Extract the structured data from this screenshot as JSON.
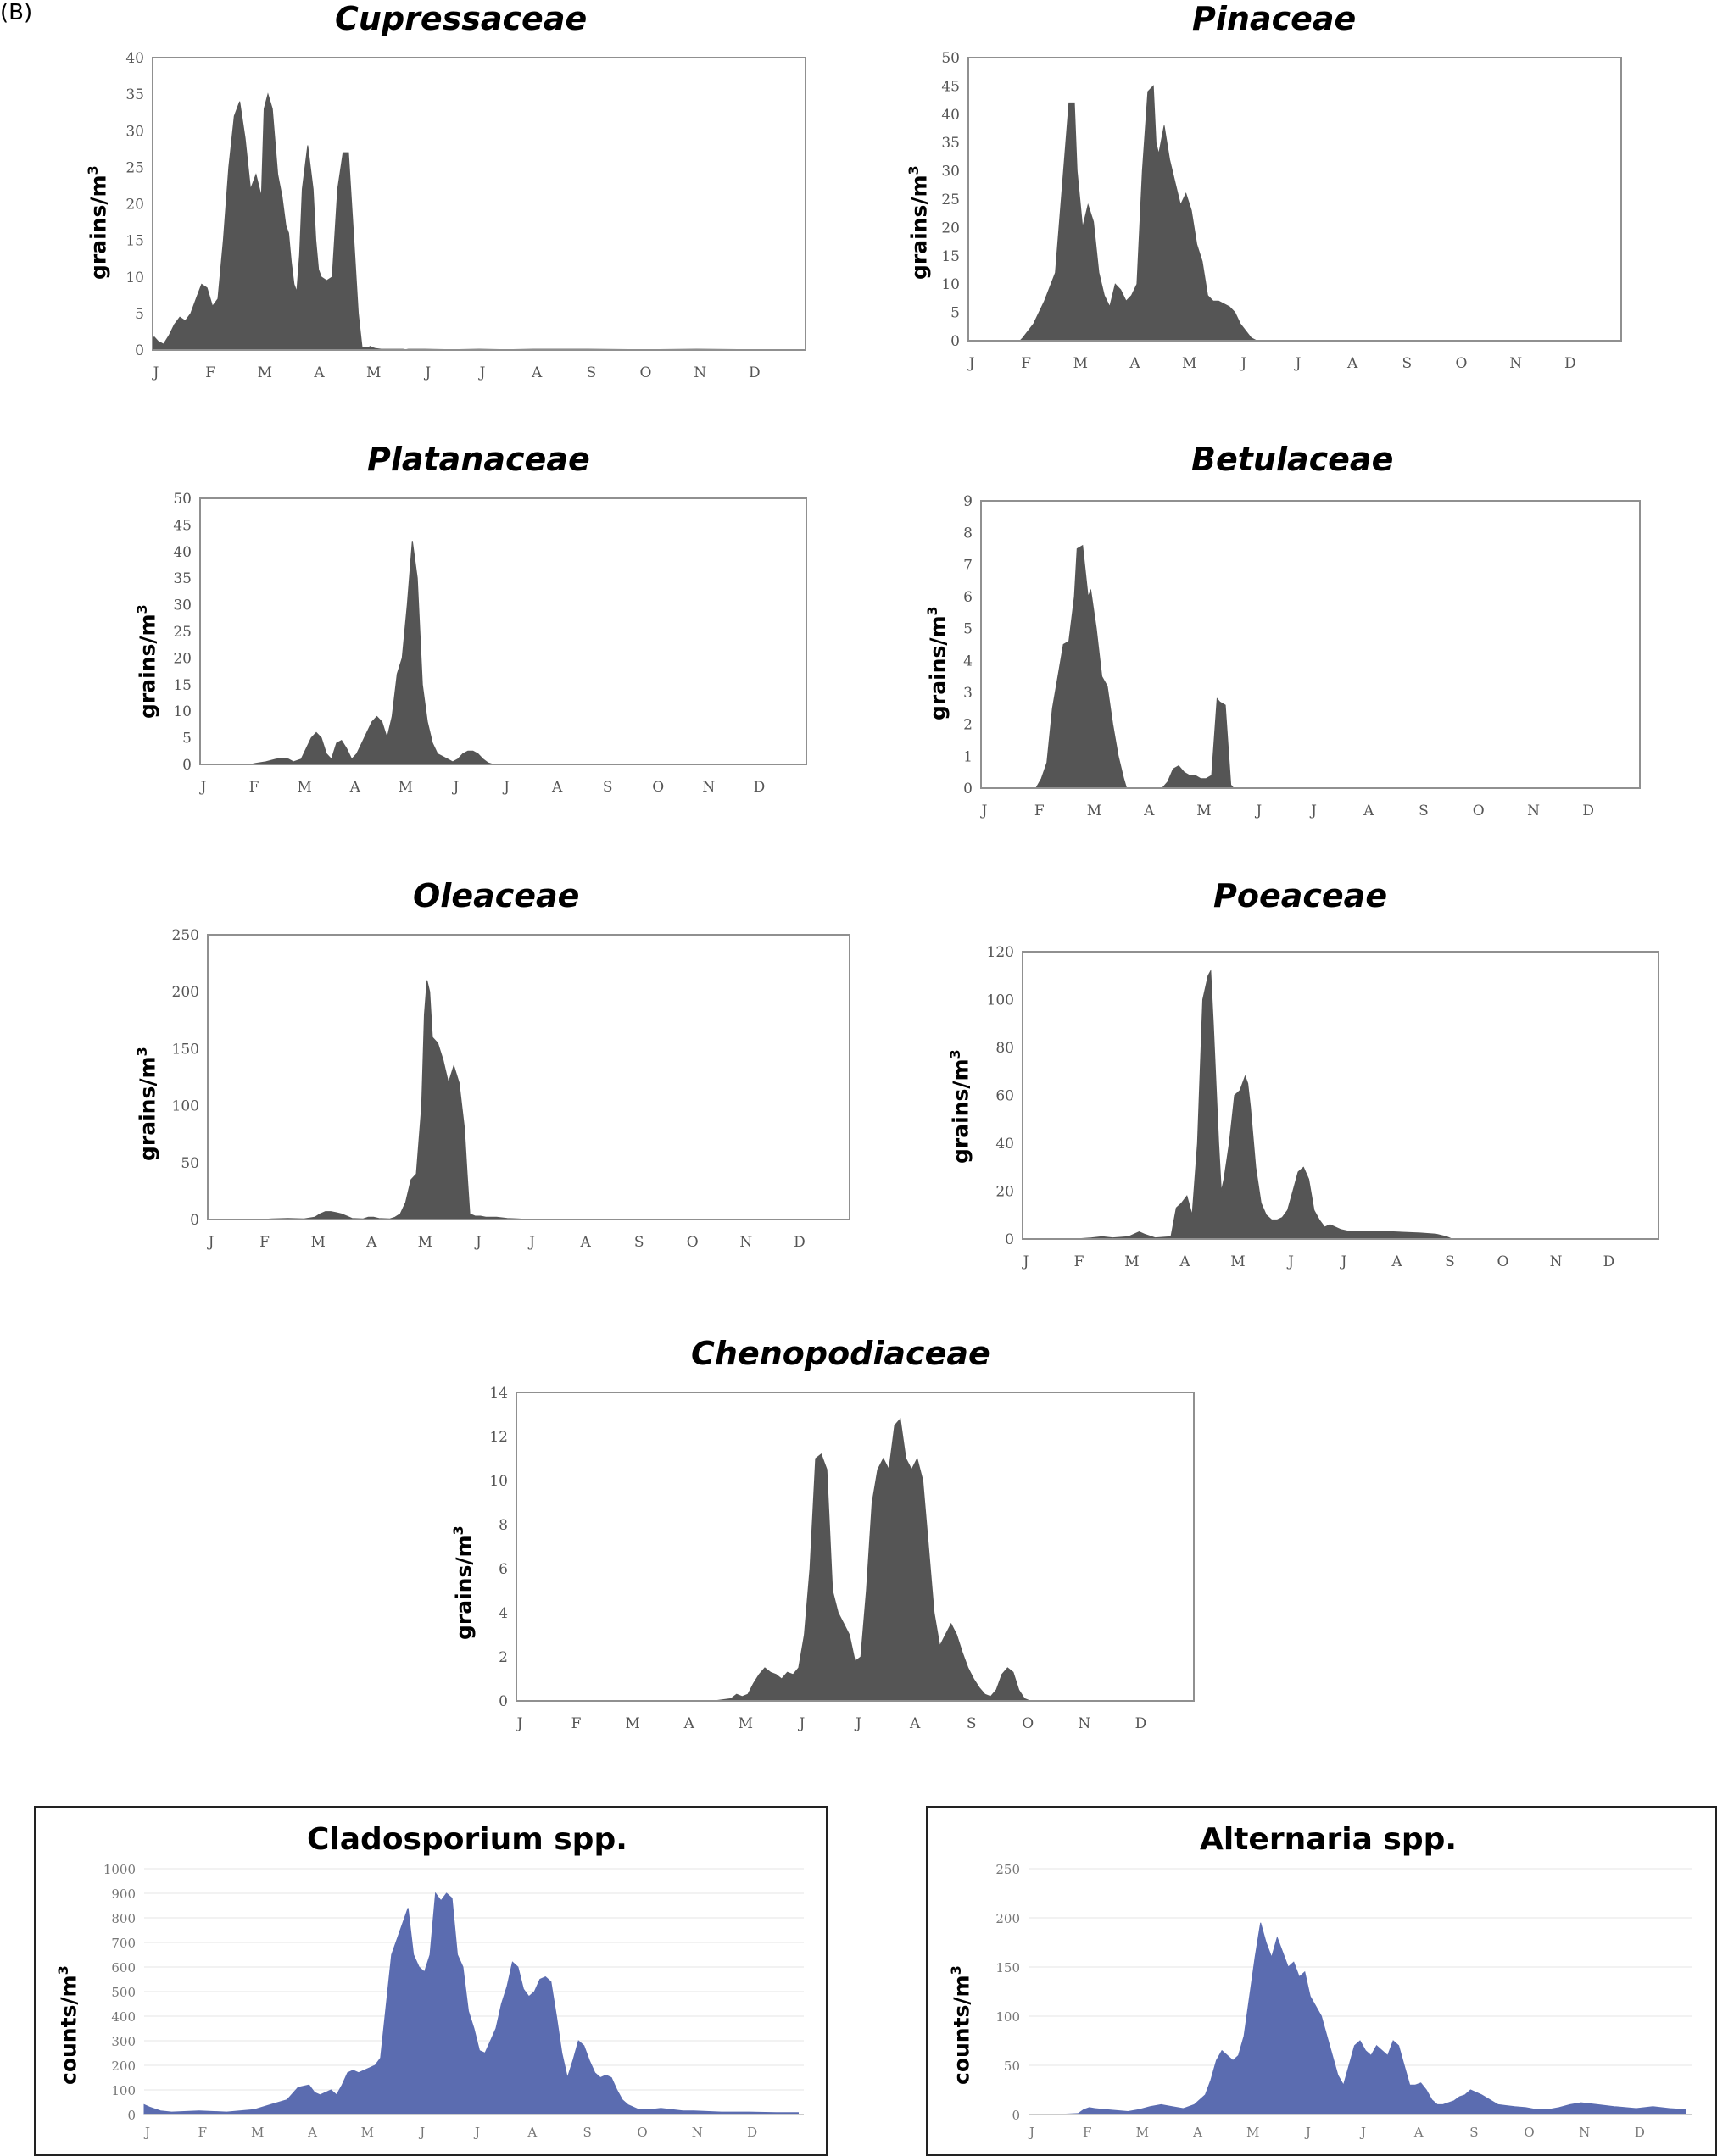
{
  "panel_label": "(B)",
  "months": [
    "J",
    "F",
    "M",
    "A",
    "M",
    "J",
    "J",
    "A",
    "S",
    "O",
    "N",
    "D"
  ],
  "pollen_ylabel_base": "grains/m",
  "fungal_ylabel_base": "counts/m",
  "ylabel_sup": "3",
  "colors": {
    "pollen": "#555555",
    "fungal": "#5b6cb0",
    "frame": "#909090"
  },
  "chart_data": [
    {
      "type": "area",
      "title": "Cupressaceae",
      "ylabel": "grains/m3",
      "ylim": [
        0,
        40
      ],
      "yticks": [
        0,
        5,
        10,
        15,
        20,
        25,
        30,
        35,
        40
      ],
      "x": [
        0,
        0.03,
        0.1,
        0.2,
        0.3,
        0.4,
        0.5,
        0.6,
        0.7,
        0.8,
        0.9,
        1.0,
        1.1,
        1.2,
        1.3,
        1.4,
        1.5,
        1.6,
        1.7,
        1.8,
        1.9,
        2.0,
        2.05,
        2.12,
        2.2,
        2.3,
        2.38,
        2.45,
        2.5,
        2.55,
        2.6,
        2.65,
        2.7,
        2.75,
        2.85,
        2.95,
        3.0,
        3.05,
        3.1,
        3.2,
        3.3,
        3.4,
        3.5,
        3.6,
        3.7,
        3.78,
        3.85,
        3.95,
        4.0,
        4.05,
        4.1,
        4.2,
        4.3,
        4.4,
        4.5,
        4.6,
        4.65,
        4.7,
        5.0,
        5.5,
        6.0,
        6.5,
        7.0,
        8.0,
        9.0,
        10.0,
        11.0,
        11.9
      ],
      "y": [
        1.5,
        1.8,
        1.2,
        0.8,
        2,
        3.5,
        4.5,
        4,
        5,
        7,
        9,
        8.5,
        6,
        7,
        15,
        25,
        32,
        34,
        29,
        22,
        24,
        21,
        33,
        35,
        33,
        24,
        21,
        17,
        16,
        12,
        9,
        8,
        13,
        22,
        28,
        22,
        15,
        11,
        10,
        9.5,
        10,
        22,
        27,
        27,
        15,
        5,
        0.4,
        0.3,
        0.5,
        0.3,
        0.2,
        0.1,
        0.1,
        0.1,
        0.1,
        0.1,
        0.05,
        0.1,
        0.1,
        0.05,
        0.1,
        0.05,
        0.1,
        0.1,
        0.05,
        0.1,
        0.05,
        0
      ]
    },
    {
      "type": "area",
      "title": "Pinaceae",
      "ylabel": "grains/m3",
      "ylim": [
        0,
        50
      ],
      "yticks": [
        0,
        5,
        10,
        15,
        20,
        25,
        30,
        35,
        40,
        45,
        50
      ],
      "x": [
        0,
        0.5,
        0.95,
        1.0,
        1.2,
        1.4,
        1.6,
        1.75,
        1.85,
        1.95,
        2.0,
        2.1,
        2.2,
        2.3,
        2.4,
        2.5,
        2.6,
        2.7,
        2.8,
        2.9,
        3.0,
        3.1,
        3.2,
        3.3,
        3.4,
        3.45,
        3.5,
        3.6,
        3.7,
        3.8,
        3.9,
        4.0,
        4.1,
        4.2,
        4.3,
        4.4,
        4.5,
        4.6,
        4.7,
        4.8,
        4.9,
        5.0,
        5.2,
        5.3,
        5.45,
        5.6,
        5.75,
        5.9,
        6.5,
        7.5,
        9,
        11,
        11.9
      ],
      "y": [
        0,
        0,
        0,
        0.5,
        3,
        7,
        12,
        30,
        42,
        42,
        30,
        20,
        24,
        21,
        12,
        8,
        6,
        10,
        9,
        7,
        8,
        10,
        30,
        44,
        45,
        35,
        33,
        38,
        32,
        28,
        24,
        26,
        23,
        17,
        14,
        8,
        7,
        7,
        6.5,
        6,
        5,
        3,
        0.5,
        0,
        0,
        0,
        0,
        0,
        0,
        0,
        0,
        0,
        0
      ]
    },
    {
      "type": "area",
      "title": "Platanaceae",
      "ylabel": "grains/m3",
      "ylim": [
        0,
        50
      ],
      "yticks": [
        0,
        5,
        10,
        15,
        20,
        25,
        30,
        35,
        40,
        45,
        50
      ],
      "x": [
        0,
        1.0,
        1.1,
        1.3,
        1.5,
        1.65,
        1.75,
        1.85,
        2.0,
        2.1,
        2.2,
        2.3,
        2.4,
        2.5,
        2.6,
        2.7,
        2.8,
        2.9,
        3.0,
        3.1,
        3.2,
        3.3,
        3.4,
        3.5,
        3.6,
        3.7,
        3.8,
        3.9,
        4.0,
        4.1,
        4.2,
        4.3,
        4.4,
        4.5,
        4.6,
        4.7,
        4.8,
        4.9,
        5.0,
        5.1,
        5.2,
        5.3,
        5.4,
        5.5,
        5.6,
        5.7,
        5.8,
        5.9,
        6.0,
        7,
        9,
        11.9
      ],
      "y": [
        0,
        0,
        0.2,
        0.5,
        1,
        1.2,
        1,
        0.5,
        1,
        3,
        5,
        6,
        5,
        2,
        1,
        4,
        4.5,
        3,
        1,
        2,
        4,
        6,
        8,
        9,
        8,
        5,
        9,
        17,
        20,
        30,
        42,
        35,
        15,
        8,
        4,
        2,
        1.5,
        1,
        0.5,
        1,
        2,
        2.5,
        2.5,
        2,
        1,
        0.3,
        0,
        0,
        0,
        0,
        0,
        0
      ]
    },
    {
      "type": "area",
      "title": "Betulaceae",
      "ylabel": "grains/m3",
      "ylim": [
        0,
        9
      ],
      "yticks": [
        0,
        1,
        2,
        3,
        4,
        5,
        6,
        7,
        8,
        9
      ],
      "x": [
        0,
        0.9,
        1.0,
        1.1,
        1.2,
        1.3,
        1.4,
        1.5,
        1.6,
        1.7,
        1.75,
        1.85,
        1.95,
        2.0,
        2.1,
        2.2,
        2.3,
        2.4,
        2.5,
        2.6,
        2.65,
        3.0,
        3.3,
        3.4,
        3.5,
        3.6,
        3.7,
        3.8,
        3.9,
        4.0,
        4.1,
        4.2,
        4.3,
        4.35,
        4.45,
        4.55,
        4.6,
        4.65,
        5,
        7,
        9,
        11.9
      ],
      "y": [
        0,
        0,
        0,
        0.3,
        0.8,
        2.5,
        3.5,
        4.5,
        4.6,
        6,
        7.5,
        7.6,
        6,
        6.2,
        5,
        3.5,
        3.2,
        2,
        1,
        0.3,
        0,
        0,
        0,
        0.2,
        0.6,
        0.7,
        0.5,
        0.4,
        0.4,
        0.3,
        0.3,
        0.4,
        2.8,
        2.7,
        2.6,
        0.1,
        0,
        0,
        0,
        0,
        0,
        0
      ]
    },
    {
      "type": "area",
      "title": "Oleaceae",
      "ylabel": "grains/m3",
      "ylim": [
        0,
        250
      ],
      "yticks": [
        0,
        50,
        100,
        150,
        200,
        250
      ],
      "x": [
        0,
        1.0,
        1.2,
        1.5,
        1.8,
        2.0,
        2.1,
        2.2,
        2.3,
        2.4,
        2.5,
        2.6,
        2.7,
        2.9,
        3.0,
        3.1,
        3.2,
        3.4,
        3.5,
        3.6,
        3.7,
        3.8,
        3.9,
        4.0,
        4.05,
        4.1,
        4.15,
        4.2,
        4.3,
        4.4,
        4.5,
        4.6,
        4.7,
        4.8,
        4.85,
        4.9,
        5.0,
        5.1,
        5.2,
        5.4,
        5.6,
        5.8,
        6,
        7,
        9,
        11.9
      ],
      "y": [
        0,
        0,
        0.5,
        1,
        0.5,
        2,
        5,
        7,
        7,
        6,
        5,
        3,
        1,
        0.5,
        2,
        2,
        1,
        0.5,
        2,
        5,
        15,
        35,
        40,
        100,
        180,
        210,
        200,
        160,
        155,
        140,
        120,
        135,
        120,
        80,
        40,
        5,
        3,
        3,
        2,
        2,
        1,
        0.5,
        0,
        0,
        0,
        0
      ]
    },
    {
      "type": "area",
      "title": "Poeaceae",
      "ylabel": "grains/m3",
      "ylim": [
        0,
        120
      ],
      "yticks": [
        0,
        20,
        40,
        60,
        80,
        100,
        120
      ],
      "x": [
        0,
        1.0,
        1.3,
        1.5,
        1.7,
        2.0,
        2.1,
        2.2,
        2.3,
        2.5,
        2.8,
        2.9,
        3.0,
        3.1,
        3.2,
        3.3,
        3.4,
        3.5,
        3.55,
        3.6,
        3.7,
        3.75,
        3.8,
        3.9,
        4.0,
        4.1,
        4.2,
        4.25,
        4.3,
        4.4,
        4.5,
        4.6,
        4.7,
        4.8,
        4.9,
        5.0,
        5.1,
        5.2,
        5.3,
        5.4,
        5.5,
        5.6,
        5.7,
        5.8,
        6.0,
        6.2,
        6.5,
        7.0,
        7.5,
        7.8,
        8.0,
        8.1,
        8.5,
        10,
        11.9
      ],
      "y": [
        0,
        0,
        0.5,
        1,
        0.5,
        1,
        2,
        3,
        2,
        0.5,
        1,
        13,
        15,
        18,
        10,
        40,
        100,
        110,
        112,
        90,
        40,
        20,
        25,
        40,
        60,
        62,
        68,
        65,
        55,
        30,
        15,
        10,
        8,
        8,
        9,
        12,
        20,
        28,
        30,
        25,
        12,
        8,
        5,
        6,
        4,
        3,
        3,
        3,
        2.5,
        2,
        1,
        0,
        0,
        0,
        0
      ]
    },
    {
      "type": "area",
      "title": "Chenopodiaceae",
      "ylabel": "grains/m3",
      "ylim": [
        0,
        14
      ],
      "yticks": [
        0,
        2,
        4,
        6,
        8,
        10,
        12,
        14
      ],
      "x": [
        0,
        3.5,
        3.8,
        3.9,
        4.0,
        4.1,
        4.2,
        4.3,
        4.4,
        4.5,
        4.6,
        4.7,
        4.8,
        4.9,
        5.0,
        5.1,
        5.2,
        5.3,
        5.4,
        5.5,
        5.6,
        5.7,
        5.8,
        5.9,
        6.0,
        6.1,
        6.2,
        6.3,
        6.4,
        6.5,
        6.6,
        6.7,
        6.8,
        6.9,
        7.0,
        7.1,
        7.2,
        7.3,
        7.4,
        7.5,
        7.6,
        7.7,
        7.8,
        7.9,
        8.0,
        8.1,
        8.2,
        8.3,
        8.4,
        8.5,
        8.6,
        8.7,
        8.8,
        8.9,
        9.0,
        9.1,
        9.2,
        9.3,
        9.4,
        9.5,
        9.6,
        9.7,
        9.8,
        10,
        11,
        11.9
      ],
      "y": [
        0,
        0,
        0.1,
        0.3,
        0.2,
        0.3,
        0.8,
        1.2,
        1.5,
        1.3,
        1.2,
        1,
        1.3,
        1.2,
        1.5,
        3,
        6,
        11,
        11.2,
        10.5,
        5,
        4,
        3.5,
        3,
        1.8,
        2,
        5,
        9,
        10.5,
        11,
        10.5,
        12.5,
        12.8,
        11,
        10.5,
        11,
        10,
        7,
        4,
        2.5,
        3,
        3.5,
        3,
        2.2,
        1.5,
        1,
        0.6,
        0.3,
        0.2,
        0.5,
        1.2,
        1.5,
        1.3,
        0.5,
        0.1,
        0,
        0,
        0,
        0,
        0,
        0,
        0,
        0,
        0,
        0,
        0
      ]
    },
    {
      "type": "area",
      "title": "Cladosporium spp.",
      "ylabel": "counts/m3",
      "ylim": [
        0,
        1000
      ],
      "yticks": [
        0,
        100,
        200,
        300,
        400,
        500,
        600,
        700,
        800,
        900,
        1000
      ],
      "x": [
        0,
        0.1,
        0.3,
        0.5,
        1.0,
        1.5,
        2.0,
        2.3,
        2.6,
        2.8,
        3.0,
        3.1,
        3.2,
        3.3,
        3.4,
        3.5,
        3.6,
        3.7,
        3.8,
        3.9,
        4.0,
        4.1,
        4.2,
        4.3,
        4.5,
        4.8,
        4.9,
        5.0,
        5.1,
        5.2,
        5.3,
        5.4,
        5.5,
        5.6,
        5.7,
        5.8,
        5.9,
        6.0,
        6.1,
        6.2,
        6.3,
        6.4,
        6.5,
        6.6,
        6.7,
        6.8,
        6.9,
        7.0,
        7.1,
        7.2,
        7.3,
        7.4,
        7.5,
        7.6,
        7.7,
        7.8,
        7.9,
        8.0,
        8.1,
        8.2,
        8.3,
        8.4,
        8.5,
        8.6,
        8.7,
        8.8,
        8.9,
        9.0,
        9.2,
        9.4,
        9.6,
        9.8,
        10,
        10.5,
        11,
        11.5,
        11.9
      ],
      "y": [
        40,
        30,
        15,
        10,
        15,
        10,
        20,
        40,
        60,
        110,
        120,
        90,
        80,
        90,
        100,
        80,
        120,
        170,
        180,
        170,
        180,
        190,
        200,
        230,
        650,
        840,
        650,
        600,
        580,
        650,
        900,
        870,
        900,
        880,
        650,
        600,
        420,
        350,
        260,
        250,
        300,
        350,
        450,
        520,
        620,
        600,
        510,
        480,
        500,
        550,
        560,
        540,
        400,
        250,
        150,
        220,
        300,
        280,
        220,
        170,
        150,
        160,
        150,
        100,
        60,
        40,
        30,
        20,
        20,
        25,
        20,
        15,
        15,
        10,
        10,
        8,
        8
      ]
    },
    {
      "type": "area",
      "title": "Alternaria spp.",
      "ylabel": "counts/m3",
      "ylim": [
        0,
        250
      ],
      "yticks": [
        0,
        50,
        100,
        150,
        200,
        250
      ],
      "x": [
        0,
        0.5,
        0.9,
        1.0,
        1.1,
        1.2,
        1.4,
        1.6,
        1.8,
        2.0,
        2.2,
        2.4,
        2.6,
        2.8,
        3.0,
        3.2,
        3.3,
        3.4,
        3.5,
        3.6,
        3.7,
        3.8,
        3.9,
        4.0,
        4.1,
        4.2,
        4.3,
        4.4,
        4.5,
        4.6,
        4.7,
        4.8,
        4.9,
        5.0,
        5.1,
        5.2,
        5.3,
        5.4,
        5.5,
        5.6,
        5.7,
        5.8,
        5.9,
        6.0,
        6.1,
        6.2,
        6.3,
        6.4,
        6.5,
        6.6,
        6.7,
        6.8,
        6.9,
        7.0,
        7.1,
        7.2,
        7.3,
        7.4,
        7.5,
        7.6,
        7.7,
        7.8,
        7.9,
        8.0,
        8.2,
        8.5,
        8.8,
        9.0,
        9.2,
        9.4,
        9.6,
        9.8,
        10,
        10.3,
        10.6,
        11,
        11.3,
        11.6,
        11.9
      ],
      "y": [
        0,
        0,
        1,
        5,
        7,
        6,
        5,
        4,
        3,
        5,
        8,
        10,
        8,
        6,
        10,
        20,
        35,
        55,
        65,
        60,
        55,
        60,
        80,
        120,
        160,
        195,
        175,
        160,
        180,
        165,
        150,
        155,
        140,
        145,
        120,
        110,
        100,
        80,
        60,
        40,
        30,
        50,
        70,
        75,
        65,
        60,
        70,
        65,
        60,
        75,
        70,
        50,
        30,
        30,
        32,
        25,
        15,
        10,
        10,
        12,
        14,
        18,
        20,
        25,
        20,
        10,
        8,
        7,
        5,
        5,
        7,
        10,
        12,
        10,
        8,
        6,
        8,
        6,
        5
      ]
    }
  ]
}
